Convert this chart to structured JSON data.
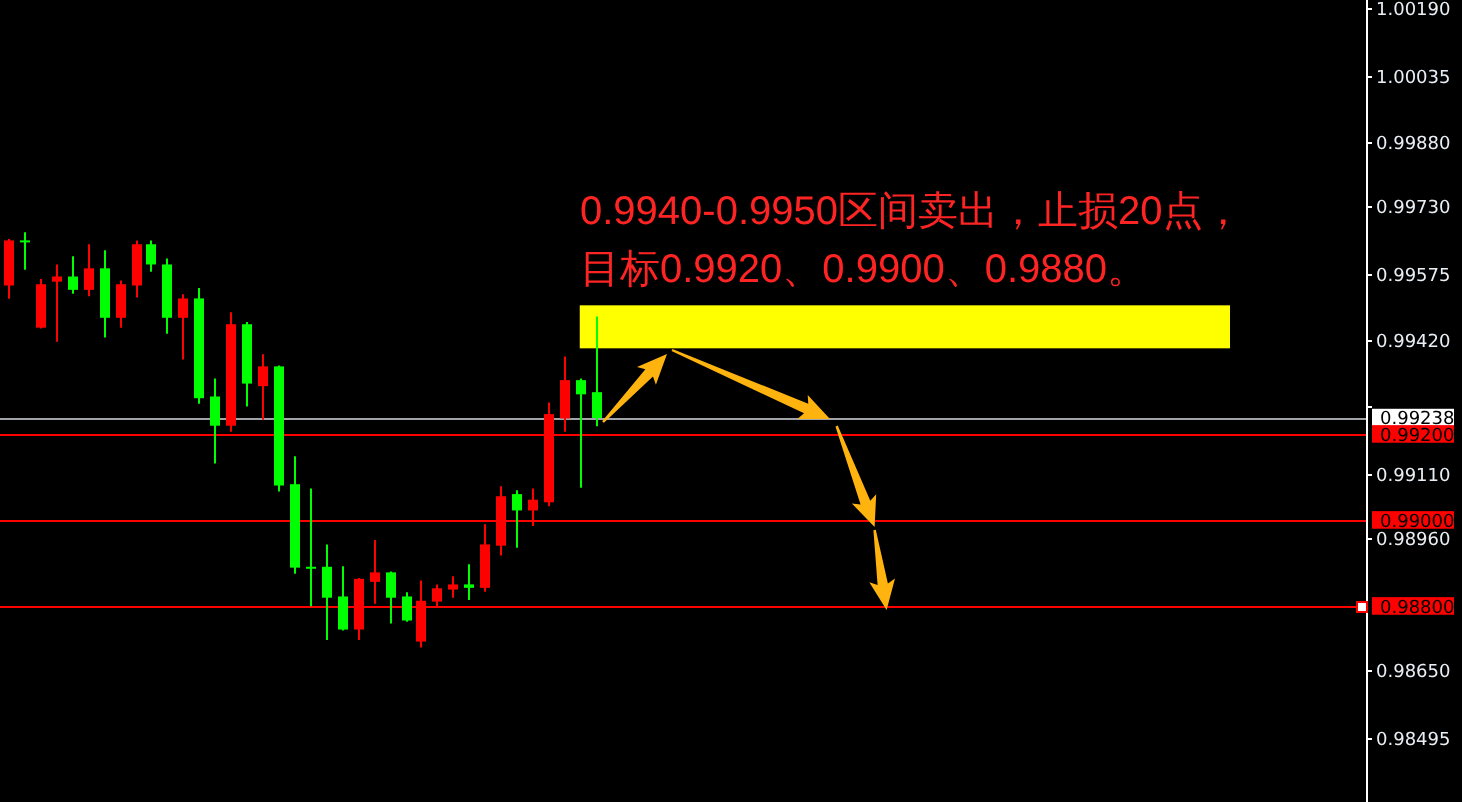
{
  "chart_data": {
    "type": "candlestick",
    "categories": [
      null,
      null,
      null,
      null,
      null,
      null,
      null,
      null,
      null,
      null,
      null,
      null,
      null,
      null,
      null,
      null,
      null,
      null,
      null,
      null,
      null,
      null,
      null,
      null,
      null,
      null,
      null,
      null,
      null,
      null,
      null,
      null,
      null,
      null,
      null,
      null,
      null,
      null,
      null,
      null,
      null,
      null,
      null,
      null,
      null,
      null,
      null,
      null,
      null,
      null,
      null,
      null,
      null,
      null,
      null,
      null,
      null,
      null,
      null,
      null,
      null,
      null,
      null,
      null,
      null,
      null,
      null,
      null,
      null,
      null,
      null,
      null,
      null,
      null,
      null,
      null,
      null,
      null,
      null,
      null,
      null,
      null,
      null,
      null,
      null,
      null
    ],
    "ohlc": [
      [
        0.99546,
        0.99654,
        0.99515,
        0.99651
      ],
      [
        0.99651,
        0.9967,
        0.99583,
        0.99647
      ],
      [
        0.99448,
        0.99561,
        0.99446,
        0.99549
      ],
      [
        0.99555,
        0.99595,
        0.99415,
        0.99567
      ],
      [
        0.99567,
        0.99614,
        0.99527,
        0.99536
      ],
      [
        0.99536,
        0.99642,
        0.99521,
        0.99586
      ],
      [
        0.99586,
        0.99628,
        0.99425,
        0.99471
      ],
      [
        0.99471,
        0.99558,
        0.99448,
        0.99549
      ],
      [
        0.99546,
        0.99651,
        0.99518,
        0.99642
      ],
      [
        0.99642,
        0.99651,
        0.99578,
        0.99595
      ],
      [
        0.99595,
        0.99609,
        0.99434,
        0.99471
      ],
      [
        0.99471,
        0.99526,
        0.99374,
        0.99516
      ],
      [
        0.99516,
        0.9954,
        0.99271,
        0.99284
      ],
      [
        0.99288,
        0.9933,
        0.99132,
        0.9922
      ],
      [
        0.9922,
        0.99484,
        0.99206,
        0.99456
      ],
      [
        0.99456,
        0.99461,
        0.99265,
        0.99318
      ],
      [
        0.99312,
        0.99386,
        0.99234,
        0.99358
      ],
      [
        0.99358,
        0.9936,
        0.99067,
        0.99081
      ],
      [
        0.99084,
        0.99149,
        0.98876,
        0.9889
      ],
      [
        0.98892,
        0.99074,
        0.988,
        0.9889
      ],
      [
        0.98892,
        0.98944,
        0.98722,
        0.9882
      ],
      [
        0.98823,
        0.98893,
        0.98744,
        0.98746
      ],
      [
        0.98746,
        0.98866,
        0.98722,
        0.98864
      ],
      [
        0.98857,
        0.98954,
        0.98806,
        0.98879
      ],
      [
        0.98879,
        0.98881,
        0.9876,
        0.9882
      ],
      [
        0.98823,
        0.98833,
        0.98764,
        0.98767
      ],
      [
        0.98718,
        0.9886,
        0.98704,
        0.98813
      ],
      [
        0.98811,
        0.98851,
        0.98801,
        0.98842
      ],
      [
        0.98839,
        0.9887,
        0.9882,
        0.98851
      ],
      [
        0.98851,
        0.98898,
        0.98815,
        0.98843
      ],
      [
        0.98843,
        0.98991,
        0.98834,
        0.98944
      ],
      [
        0.98941,
        0.99079,
        0.98918,
        0.99056
      ],
      [
        0.99061,
        0.9907,
        0.98936,
        0.99023
      ],
      [
        0.99023,
        0.99074,
        0.98987,
        0.99048
      ],
      [
        0.99042,
        0.99274,
        0.99033,
        0.99247
      ],
      [
        0.99237,
        0.99381,
        0.99206,
        0.99326
      ],
      [
        0.99326,
        0.9933,
        0.99076,
        0.99293
      ],
      [
        0.99298,
        0.99474,
        0.99219,
        0.99238
      ],
      null,
      null,
      null,
      null,
      null,
      null,
      null,
      null,
      null,
      null,
      null,
      null,
      null,
      null,
      null,
      null,
      null,
      null,
      null,
      null,
      null,
      null,
      null,
      null,
      null,
      null,
      null,
      null,
      null,
      null,
      null,
      null,
      null,
      null,
      null,
      null,
      null,
      null,
      null,
      null,
      null,
      null,
      null,
      null,
      null,
      null,
      null,
      null
    ],
    "colors": [
      "#ff0000",
      "#00ff00",
      "#ff0000",
      "#ff0000",
      "#00ff00",
      "#ff0000",
      "#00ff00",
      "#ff0000",
      "#ff0000",
      "#00ff00",
      "#00ff00",
      "#ff0000",
      "#00ff00",
      "#00ff00",
      "#ff0000",
      "#00ff00",
      "#ff0000",
      "#00ff00",
      "#00ff00",
      "#00ff00",
      "#00ff00",
      "#00ff00",
      "#ff0000",
      "#ff0000",
      "#00ff00",
      "#00ff00",
      "#ff0000",
      "#ff0000",
      "#ff0000",
      "#00ff00",
      "#ff0000",
      "#ff0000",
      "#00ff00",
      "#ff0000",
      "#ff0000",
      "#ff0000",
      "#00ff00",
      "#00ff00",
      null,
      null,
      null,
      null,
      null,
      null,
      null,
      null,
      null,
      null,
      null,
      null,
      null,
      null,
      null,
      null,
      null,
      null,
      null,
      null,
      null,
      null,
      null,
      null,
      null,
      null,
      null,
      null,
      null,
      null,
      null,
      null,
      null,
      null,
      null,
      null,
      null,
      null,
      null,
      null,
      null,
      null,
      null,
      null,
      null,
      null,
      null,
      null
    ],
    "ylim": [
      0.98345,
      1.0021
    ],
    "yticks": [
      {
        "value": 1.0019,
        "label": "1.00190"
      },
      {
        "value": 1.00035,
        "label": "1.00035"
      },
      {
        "value": 0.9988,
        "label": "0.99880"
      },
      {
        "value": 0.9973,
        "label": "0.99730"
      },
      {
        "value": 0.99575,
        "label": "0.99575"
      },
      {
        "value": 0.9942,
        "label": "0.99420"
      },
      {
        "value": 0.99265,
        "label": null
      },
      {
        "value": 0.9911,
        "label": "0.99110"
      },
      {
        "value": 0.9896,
        "label": "0.98960"
      },
      {
        "value": 0.9865,
        "label": "0.98650"
      },
      {
        "value": 0.98495,
        "label": "0.98495"
      }
    ],
    "tick_labels": "y",
    "ref_lines": [
      {
        "axis": "y",
        "value": 0.99238,
        "label": "0.99238",
        "color": "#a0a4a8"
      },
      {
        "axis": "y",
        "value": 0.992,
        "label": "0.99200",
        "color": "#ff0000"
      },
      {
        "axis": "y",
        "value": 0.99,
        "label": "0.99000",
        "color": "#ff0000"
      },
      {
        "axis": "y",
        "value": 0.988,
        "label": "0.98800",
        "color": "#ff0000"
      }
    ],
    "bands": [
      {
        "axis": "y",
        "from": 0.994,
        "to": 0.995,
        "color": "#ffff00"
      }
    ],
    "annotations": [
      "0.9940-0.9950区间卖出，止损20点，",
      "目标0.9920、0.9900、0.9880。"
    ]
  }
}
